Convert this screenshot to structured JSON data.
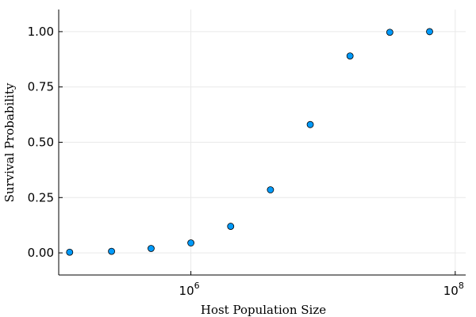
{
  "chart_data": {
    "type": "scatter",
    "title": "",
    "xlabel": "Host Population Size",
    "ylabel": "Survival Probability",
    "xscale": "log10",
    "xlim": [
      100000,
      120000000
    ],
    "ylim": [
      -0.1,
      1.1
    ],
    "grid": true,
    "legend": "none",
    "x_ticks": [
      {
        "value": 1000000,
        "base": "10",
        "exp": "6"
      },
      {
        "value": 100000000,
        "base": "10",
        "exp": "8"
      }
    ],
    "y_ticks": [
      {
        "value": 0,
        "label": "0.00"
      },
      {
        "value": 0.25,
        "label": "0.25"
      },
      {
        "value": 0.5,
        "label": "0.50"
      },
      {
        "value": 0.75,
        "label": "0.75"
      },
      {
        "value": 1.0,
        "label": "1.00"
      }
    ],
    "series": [
      {
        "color": "#009AFA",
        "points": [
          {
            "x": 121000,
            "y": 0.003
          },
          {
            "x": 251000,
            "y": 0.007
          },
          {
            "x": 500000,
            "y": 0.02
          },
          {
            "x": 1000000,
            "y": 0.045
          },
          {
            "x": 2000000,
            "y": 0.12
          },
          {
            "x": 4000000,
            "y": 0.285
          },
          {
            "x": 8000000,
            "y": 0.58
          },
          {
            "x": 16000000,
            "y": 0.89
          },
          {
            "x": 32000000,
            "y": 0.997
          },
          {
            "x": 64000000,
            "y": 1.0
          }
        ]
      }
    ]
  }
}
